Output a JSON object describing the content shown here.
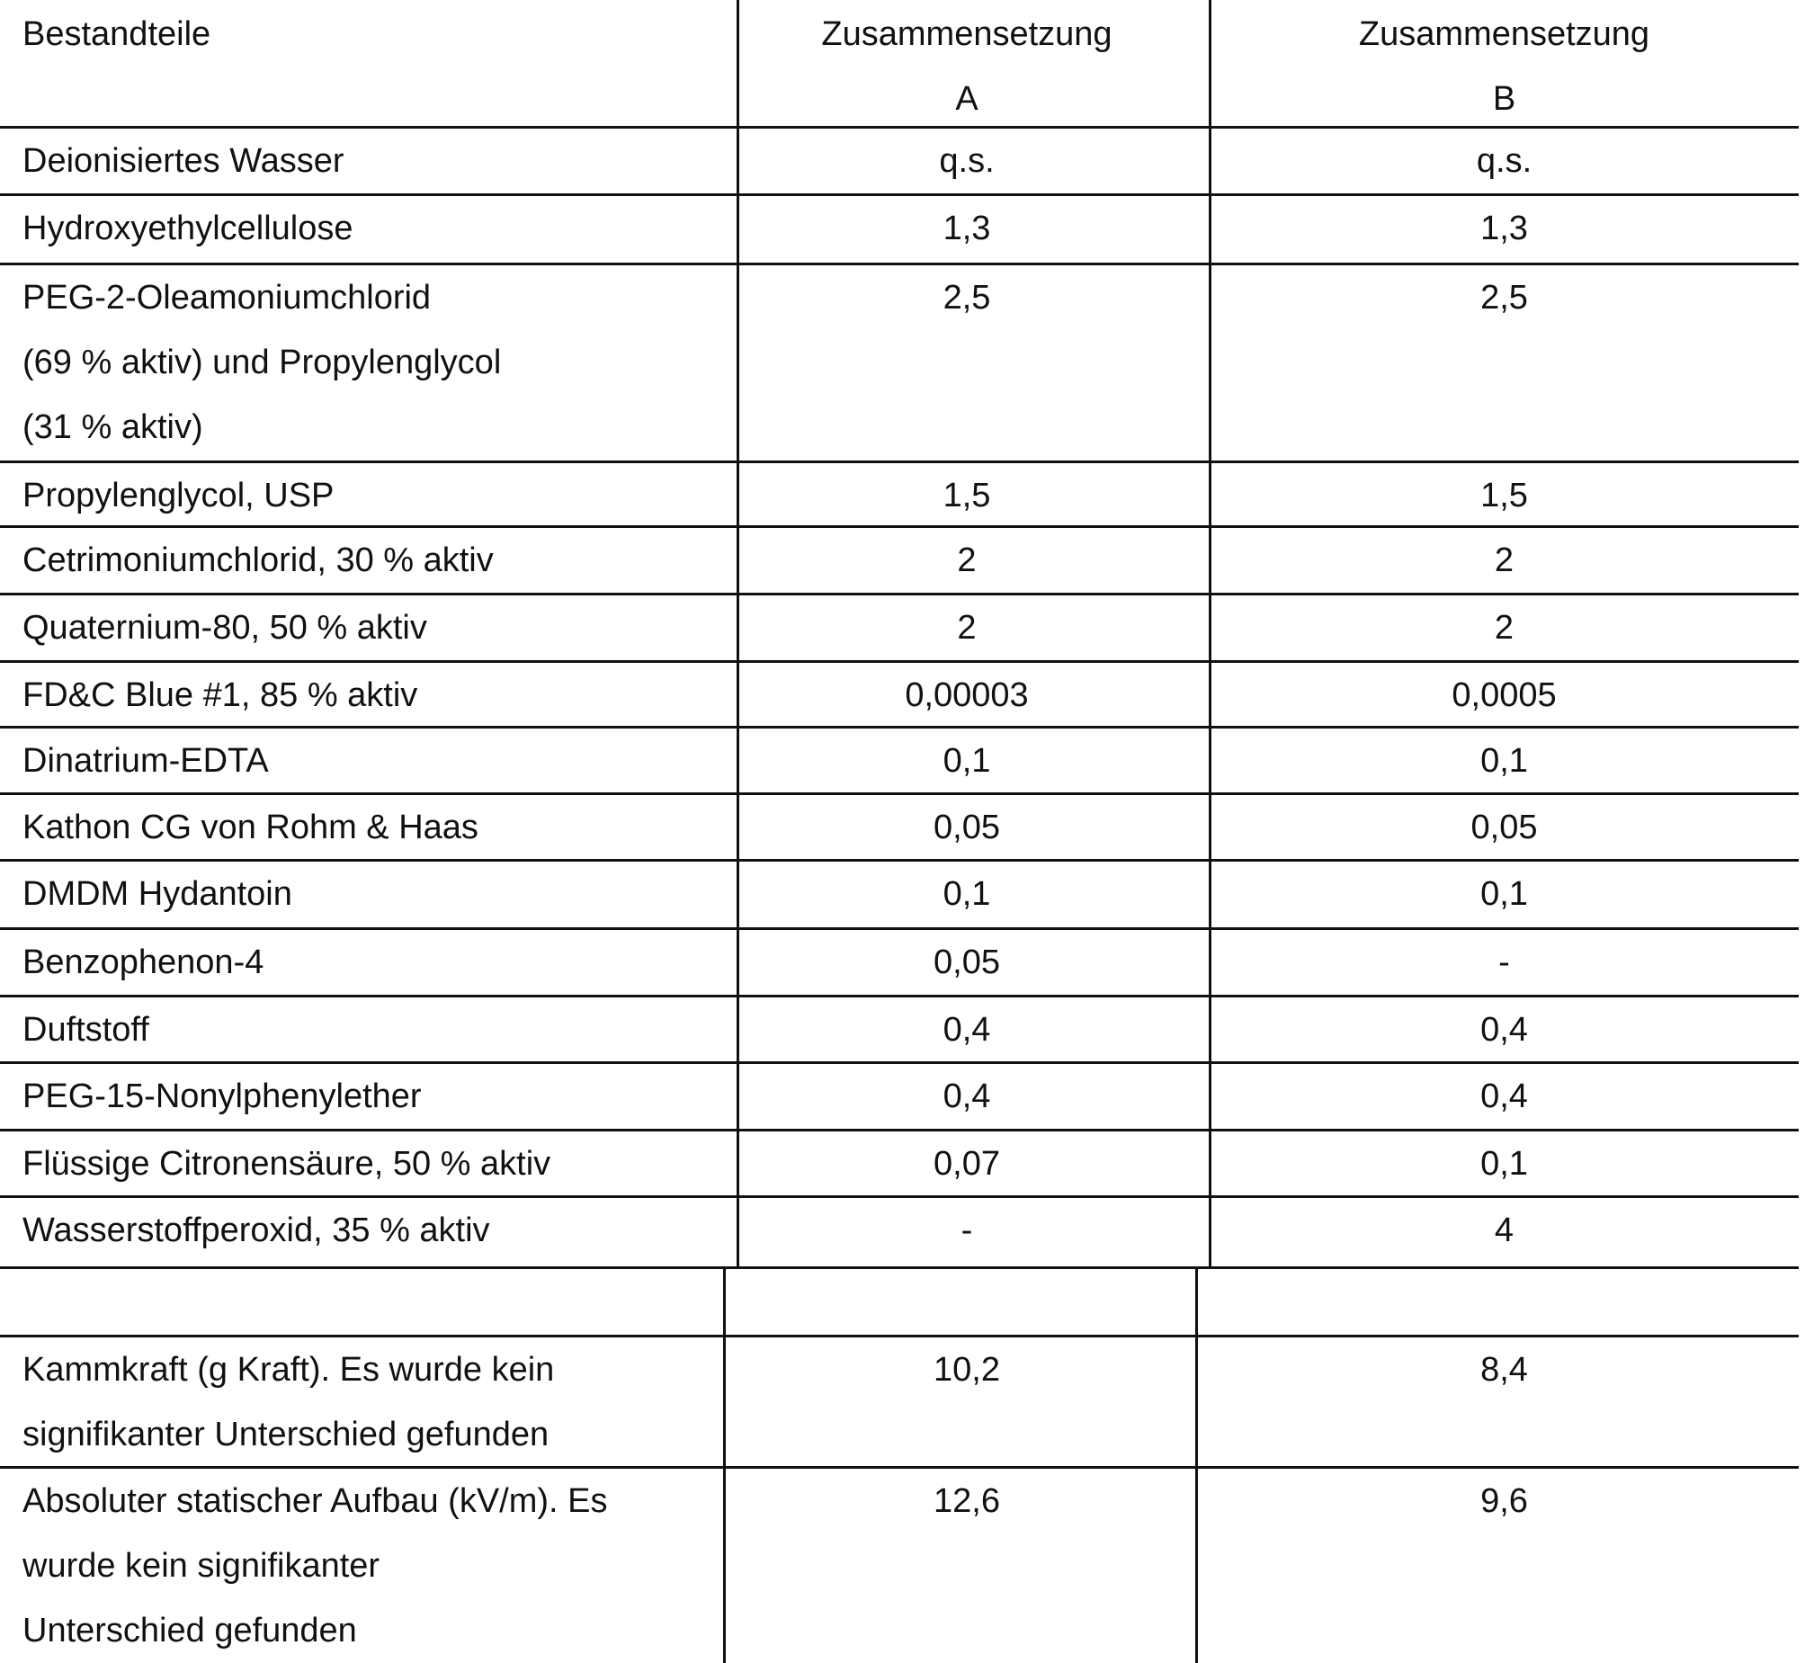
{
  "table": {
    "header": [
      [
        "Bestandteile"
      ],
      [
        "Zusammensetzung",
        "A"
      ],
      [
        "Zusammensetzung",
        "B"
      ]
    ],
    "rows": [
      [
        [
          "Deionisiertes Wasser"
        ],
        [
          "q.s."
        ],
        [
          "q.s."
        ]
      ],
      [
        [
          "Hydroxyethylcellulose"
        ],
        [
          "1,3"
        ],
        [
          "1,3"
        ]
      ],
      [
        [
          "PEG-2-Oleamoniumchlorid",
          "(69 % aktiv) und Propylenglycol",
          "(31 % aktiv)"
        ],
        [
          "2,5"
        ],
        [
          "2,5"
        ]
      ],
      [
        [
          "Propylenglycol, USP"
        ],
        [
          "1,5"
        ],
        [
          "1,5"
        ]
      ],
      [
        [
          "Cetrimoniumchlorid, 30 % aktiv"
        ],
        [
          "2"
        ],
        [
          "2"
        ]
      ],
      [
        [
          "Quaternium-80, 50 % aktiv"
        ],
        [
          "2"
        ],
        [
          "2"
        ]
      ],
      [
        [
          "FD&C Blue #1, 85 % aktiv"
        ],
        [
          "0,00003"
        ],
        [
          "0,0005"
        ]
      ],
      [
        [
          "Dinatrium-EDTA"
        ],
        [
          "0,1"
        ],
        [
          "0,1"
        ]
      ],
      [
        [
          "Kathon CG von Rohm & Haas"
        ],
        [
          "0,05"
        ],
        [
          "0,05"
        ]
      ],
      [
        [
          "DMDM Hydantoin"
        ],
        [
          "0,1"
        ],
        [
          "0,1"
        ]
      ],
      [
        [
          "Benzophenon-4"
        ],
        [
          "0,05"
        ],
        [
          "-"
        ]
      ],
      [
        [
          "Duftstoff"
        ],
        [
          "0,4"
        ],
        [
          "0,4"
        ]
      ],
      [
        [
          "PEG-15-Nonylphenylether"
        ],
        [
          "0,4"
        ],
        [
          "0,4"
        ]
      ],
      [
        [
          "Flüssige Citronensäure, 50 % aktiv"
        ],
        [
          "0,07"
        ],
        [
          "0,1"
        ]
      ],
      [
        [
          "Wasserstoffperoxid, 35 % aktiv"
        ],
        [
          "-"
        ],
        [
          "4"
        ]
      ],
      [
        [],
        [],
        []
      ],
      [
        [
          "Kammkraft (g Kraft). Es wurde kein",
          "signifikanter Unterschied gefunden"
        ],
        [
          "10,2"
        ],
        [
          "8,4"
        ]
      ],
      [
        [
          "Absoluter statischer Aufbau (kV/m). Es",
          "wurde kein signifikanter",
          "Unterschied gefunden"
        ],
        [
          "12,6"
        ],
        [
          "9,6"
        ]
      ]
    ]
  }
}
